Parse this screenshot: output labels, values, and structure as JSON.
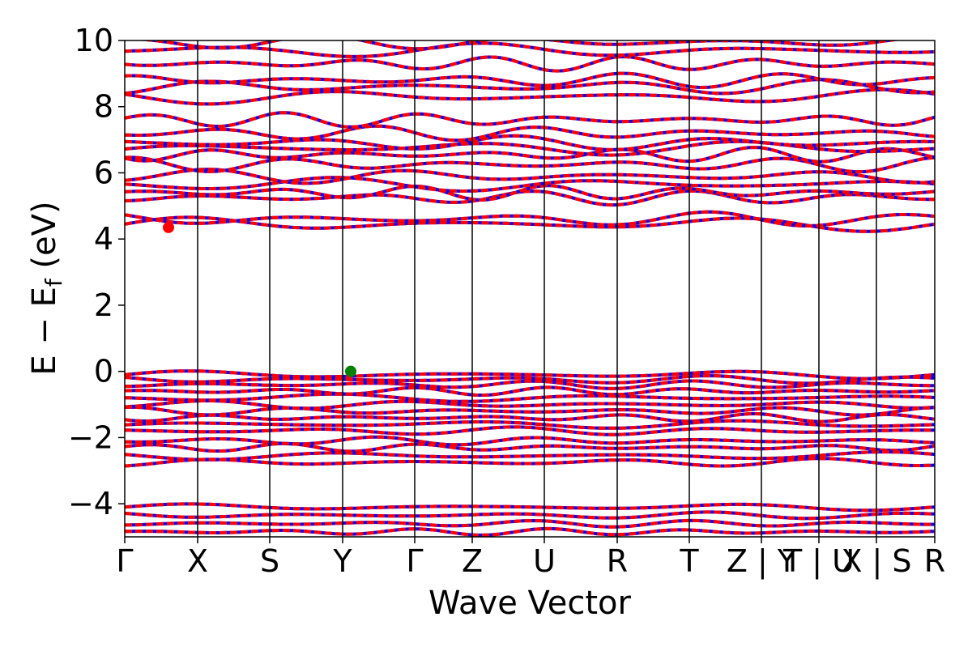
{
  "chart_data": {
    "type": "line",
    "title": "",
    "xlabel": "Wave Vector",
    "ylabel": "E − E_f (eV)",
    "ylabel_parts": {
      "main": "E − E",
      "sub": "f",
      "unit": " (eV)"
    },
    "ylim": [
      -5,
      10
    ],
    "yticks": [
      -4,
      -2,
      0,
      2,
      4,
      6,
      8,
      10
    ],
    "ytick_labels": [
      "−4",
      "−2",
      "0",
      "2",
      "4",
      "6",
      "8",
      "10"
    ],
    "xlim": [
      0,
      1
    ],
    "kpoints": [
      {
        "x": 0.0,
        "label": "Γ"
      },
      {
        "x": 0.09,
        "label": "X"
      },
      {
        "x": 0.179,
        "label": "S"
      },
      {
        "x": 0.269,
        "label": "Y"
      },
      {
        "x": 0.358,
        "label": "Γ"
      },
      {
        "x": 0.429,
        "label": "Z"
      },
      {
        "x": 0.518,
        "label": "U"
      },
      {
        "x": 0.608,
        "label": "R"
      },
      {
        "x": 0.697,
        "label": "T"
      },
      {
        "x": 0.786,
        "label": "Z | Y"
      },
      {
        "x": 0.857,
        "label": "T | U"
      },
      {
        "x": 0.928,
        "label": "X | S"
      },
      {
        "x": 1.0,
        "label": "R"
      }
    ],
    "series_colors": {
      "spin_a": "#ff0000",
      "spin_b": "#0000ff"
    },
    "conduction_band_energies": [
      4.45,
      4.6,
      5.25,
      5.4,
      5.65,
      5.9,
      6.25,
      6.55,
      6.75,
      6.9,
      7.2,
      7.6,
      8.3,
      8.6,
      8.8,
      9.3,
      9.7,
      9.95
    ],
    "valence_band_energies": [
      -0.1,
      -0.25,
      -0.4,
      -0.6,
      -0.8,
      -1.0,
      -1.2,
      -1.4,
      -1.6,
      -1.8,
      -2.1,
      -2.3,
      -2.55,
      -2.75
    ],
    "deep_band_energies": [
      -4.1,
      -4.35,
      -4.6,
      -4.85
    ],
    "cbm": {
      "x": 0.054,
      "y": 4.35,
      "color": "#ff0000"
    },
    "vbm": {
      "x": 0.279,
      "y": 0.0,
      "color": "#008000"
    }
  }
}
